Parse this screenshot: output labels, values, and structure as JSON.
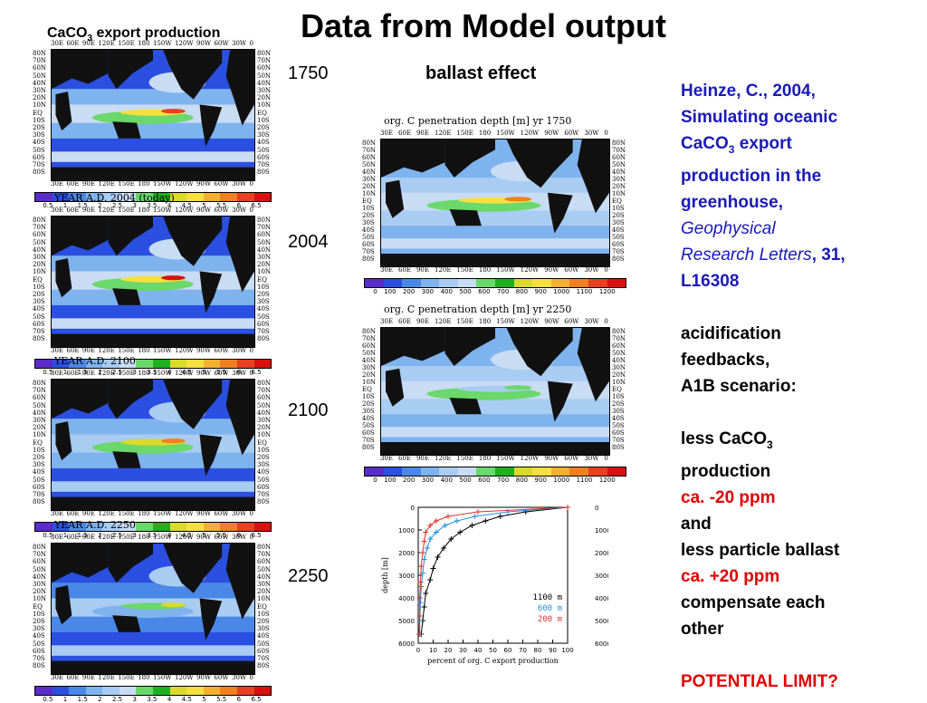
{
  "title": "Data from Model output",
  "left_header": {
    "prefix": "CaCO",
    "sub": "3",
    "suffix": " export production"
  },
  "year_labels": [
    "1750",
    "2004",
    "2100",
    "2250"
  ],
  "left_maps": [
    {
      "caption": ""
    },
    {
      "caption": "YEAR A.D. 2004 (today)"
    },
    {
      "caption": "YEAR A.D. 2100"
    },
    {
      "caption": "YEAR A.D. 2250"
    }
  ],
  "map_lats": [
    "80N",
    "70N",
    "60N",
    "50N",
    "40N",
    "30N",
    "20N",
    "10N",
    "EQ",
    "10S",
    "20S",
    "30S",
    "40S",
    "50S",
    "60S",
    "70S",
    "80S"
  ],
  "map_lons": [
    "30E",
    "60E",
    "90E",
    "120E",
    "150E",
    "180",
    "150W",
    "120W",
    "90W",
    "60W",
    "30W",
    "0"
  ],
  "left_colorbar": {
    "ticks": [
      "0.5",
      "1",
      "1.5",
      "2",
      "2.5",
      "3",
      "3.5",
      "4",
      "4.5",
      "5",
      "5.5",
      "6",
      "6.5"
    ],
    "colors": [
      "#5a2cc8",
      "#2b4fe0",
      "#4a88e8",
      "#7eb3ee",
      "#a8ccf2",
      "#c8dcf4",
      "#6ad86a",
      "#1fb01f",
      "#dada2a",
      "#f6e040",
      "#f4b030",
      "#f08020",
      "#e84020",
      "#d81010"
    ]
  },
  "ballast_label": "ballast effect",
  "right_maps": [
    {
      "caption": "org. C penetration depth [m]   yr 1750"
    },
    {
      "caption": "org. C penetration depth [m]   yr 2250"
    }
  ],
  "right_colorbar": {
    "ticks": [
      "0",
      "100",
      "200",
      "300",
      "400",
      "500",
      "600",
      "700",
      "800",
      "900",
      "1000",
      "1100",
      "1200"
    ],
    "colors": [
      "#5a2cc8",
      "#2b4fe0",
      "#4a88e8",
      "#7eb3ee",
      "#a8ccf2",
      "#c8dcf4",
      "#6ad86a",
      "#1fb01f",
      "#dada2a",
      "#f6e040",
      "#f4b030",
      "#f08020",
      "#e84020",
      "#d81010"
    ]
  },
  "chart_data": {
    "type": "line",
    "xlabel": "percent of org. C export production",
    "ylabel": "depth [m]",
    "xlim": [
      0,
      100
    ],
    "ylim": [
      0,
      6000
    ],
    "y_inverted": true,
    "xticks": [
      0,
      10,
      20,
      30,
      40,
      50,
      60,
      70,
      80,
      90,
      100
    ],
    "yticks": [
      0,
      1000,
      2000,
      3000,
      4000,
      5000,
      6000
    ],
    "series": [
      {
        "name": "1100 m",
        "color": "#000000",
        "x": [
          100,
          72,
          55,
          45,
          36,
          28,
          22,
          17,
          13,
          10,
          8,
          5,
          4,
          3,
          2
        ],
        "y": [
          0,
          200,
          400,
          600,
          800,
          1100,
          1400,
          1800,
          2200,
          2700,
          3200,
          3800,
          4400,
          5000,
          5600
        ]
      },
      {
        "name": "600 m",
        "color": "#2090e0",
        "x": [
          100,
          60,
          38,
          26,
          18,
          12,
          8,
          6,
          4,
          3,
          2,
          1.5,
          1,
          1
        ],
        "y": [
          0,
          200,
          400,
          600,
          800,
          1100,
          1400,
          1800,
          2300,
          2900,
          3500,
          4200,
          5000,
          5600
        ]
      },
      {
        "name": "200 m",
        "color": "#e03030",
        "x": [
          100,
          40,
          20,
          12,
          8,
          5,
          4,
          3,
          2,
          1.5,
          1,
          1,
          0.5
        ],
        "y": [
          0,
          200,
          400,
          600,
          800,
          1100,
          1500,
          2000,
          2600,
          3300,
          4000,
          4800,
          5600
        ]
      }
    ]
  },
  "right_text": {
    "citation_line1": "Heinze, C., 2004,",
    "citation_line2": "Simulating oceanic",
    "citation_caco": "CaCO",
    "citation_sub": "3",
    "citation_line3_rest": " export",
    "citation_line4": "production in the",
    "citation_line5": "greenhouse,",
    "journal_line1": "Geophysical",
    "journal_line2": "Research Letters",
    "volume": ", 31,",
    "pages": "L16308",
    "acid1": "acidification",
    "acid2": "feedbacks,",
    "acid3": "A1B scenario:",
    "less_caco": "less CaCO",
    "less_caco_sub": "3",
    "production": "production",
    "ppm1": "ca. -20 ppm",
    "and": "and",
    "less_ballast": "less particle ballast",
    "ppm2": "ca. +20 ppm",
    "compensate": "compensate each",
    "other": "other",
    "limit": "POTENTIAL LIMIT?"
  }
}
